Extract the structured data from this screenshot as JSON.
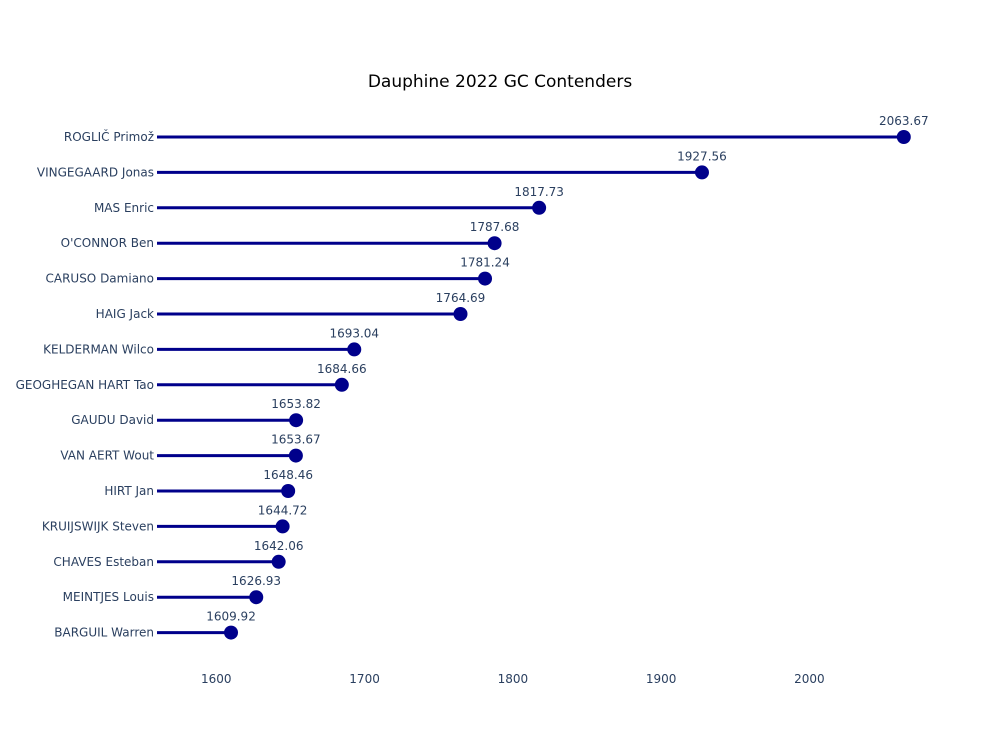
{
  "chart_data": {
    "type": "lollipop",
    "title": "Dauphine 2022 GC Contenders",
    "xlabel": "",
    "ylabel": "",
    "xlim": [
      1560,
      2080
    ],
    "xticks": [
      1600,
      1700,
      1800,
      1900,
      2000
    ],
    "grid": false,
    "legend": false,
    "color": "#00008b",
    "categories": [
      "ROGLIČ Primož",
      "VINGEGAARD Jonas",
      "MAS Enric",
      "O'CONNOR Ben",
      "CARUSO Damiano",
      "HAIG Jack",
      "KELDERMAN Wilco",
      "GEOGHEGAN HART Tao",
      "GAUDU David",
      "VAN AERT Wout",
      "HIRT Jan",
      "KRUIJSWIJK Steven",
      "CHAVES Esteban",
      "MEINTJES Louis",
      "BARGUIL Warren"
    ],
    "values": [
      2063.67,
      1927.56,
      1817.73,
      1787.68,
      1781.24,
      1764.69,
      1693.04,
      1684.66,
      1653.82,
      1653.67,
      1648.46,
      1644.72,
      1642.06,
      1626.93,
      1609.92
    ],
    "value_labels": [
      "2063.67",
      "1927.56",
      "1817.73",
      "1787.68",
      "1781.24",
      "1764.69",
      "1693.04",
      "1684.66",
      "1653.82",
      "1653.67",
      "1648.46",
      "1644.72",
      "1642.06",
      "1626.93",
      "1609.92"
    ]
  }
}
